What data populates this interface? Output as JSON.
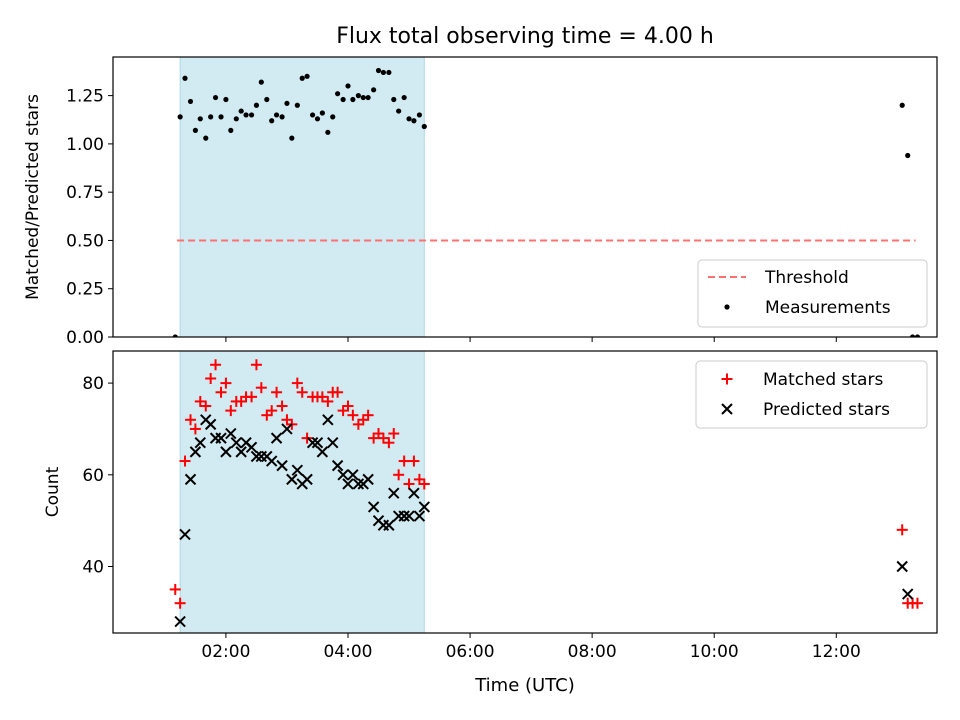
{
  "figure": {
    "title": "Flux total observing time = 4.00 h",
    "xlabel": "Time (UTC)",
    "xticks": [
      {
        "h": 2,
        "label": "02:00"
      },
      {
        "h": 4,
        "label": "04:00"
      },
      {
        "h": 6,
        "label": "06:00"
      },
      {
        "h": 8,
        "label": "08:00"
      },
      {
        "h": 10,
        "label": "10:00"
      },
      {
        "h": 12,
        "label": "12:00"
      }
    ],
    "xlim": [
      0.15,
      13.65
    ],
    "shaded_span": [
      1.25,
      5.25
    ],
    "shade_color": "#add8e6",
    "colors": {
      "threshold": "#ff7070",
      "measurements": "#000000",
      "matched": "#ff0000",
      "predicted": "#000000"
    }
  },
  "chart_data": [
    {
      "type": "scatter",
      "ylabel": "Matched/Predicted stars",
      "ylim": [
        0.0,
        1.45
      ],
      "yticks": [
        0.0,
        0.25,
        0.5,
        0.75,
        1.0,
        1.25
      ],
      "ytick_labels": [
        "0.00",
        "0.25",
        "0.50",
        "0.75",
        "1.00",
        "1.25"
      ],
      "legend_position": "lower-right",
      "threshold": {
        "name": "Threshold",
        "value": 0.5,
        "x": [
          1.2,
          13.3
        ]
      },
      "series": [
        {
          "name": "Measurements",
          "x": [
            1.17,
            1.25,
            1.33,
            1.42,
            1.5,
            1.58,
            1.67,
            1.75,
            1.83,
            1.92,
            2.0,
            2.08,
            2.17,
            2.25,
            2.33,
            2.42,
            2.5,
            2.58,
            2.67,
            2.75,
            2.83,
            2.92,
            3.0,
            3.08,
            3.17,
            3.25,
            3.33,
            3.42,
            3.5,
            3.58,
            3.67,
            3.75,
            3.83,
            3.92,
            4.0,
            4.08,
            4.17,
            4.25,
            4.33,
            4.42,
            4.5,
            4.58,
            4.67,
            4.75,
            4.83,
            4.92,
            5.0,
            5.08,
            5.17,
            5.25,
            13.08,
            13.17,
            13.25,
            13.33
          ],
          "y": [
            0.0,
            1.14,
            1.34,
            1.22,
            1.07,
            1.13,
            1.03,
            1.14,
            1.24,
            1.14,
            1.23,
            1.07,
            1.13,
            1.17,
            1.15,
            1.15,
            1.2,
            1.32,
            1.23,
            1.12,
            1.15,
            1.14,
            1.21,
            1.03,
            1.2,
            1.34,
            1.35,
            1.15,
            1.13,
            1.16,
            1.06,
            1.14,
            1.26,
            1.23,
            1.3,
            1.23,
            1.25,
            1.24,
            1.24,
            1.28,
            1.38,
            1.37,
            1.37,
            1.23,
            1.17,
            1.24,
            1.13,
            1.12,
            1.15,
            1.09,
            1.2,
            0.94,
            0.0,
            0.0
          ]
        }
      ]
    },
    {
      "type": "scatter",
      "ylabel": "Count",
      "ylim": [
        25.5,
        87.0
      ],
      "yticks": [
        40,
        60,
        80
      ],
      "ytick_labels": [
        "40",
        "60",
        "80"
      ],
      "legend_position": "upper-right",
      "series": [
        {
          "name": "Matched stars",
          "marker": "plus",
          "x": [
            1.17,
            1.25,
            1.33,
            1.42,
            1.5,
            1.58,
            1.67,
            1.75,
            1.83,
            1.92,
            2.0,
            2.08,
            2.17,
            2.25,
            2.33,
            2.42,
            2.5,
            2.58,
            2.67,
            2.75,
            2.83,
            2.92,
            3.0,
            3.08,
            3.17,
            3.25,
            3.33,
            3.42,
            3.5,
            3.58,
            3.67,
            3.75,
            3.83,
            3.92,
            4.0,
            4.08,
            4.17,
            4.25,
            4.33,
            4.42,
            4.5,
            4.58,
            4.67,
            4.75,
            4.83,
            4.92,
            5.0,
            5.08,
            5.17,
            5.25,
            13.08,
            13.17,
            13.25,
            13.33
          ],
          "y": [
            35,
            32,
            63,
            72,
            70,
            76,
            75,
            81,
            84,
            78,
            80,
            74,
            76,
            76,
            77,
            77,
            84,
            79,
            73,
            74,
            78,
            75,
            72,
            71,
            80,
            78,
            68,
            77,
            77,
            77,
            76,
            78,
            78,
            74,
            75,
            73,
            71,
            72,
            73,
            68,
            69,
            68,
            67,
            69,
            60,
            63,
            58,
            63,
            59,
            58,
            48,
            32,
            32,
            32
          ]
        },
        {
          "name": "Predicted stars",
          "marker": "x",
          "x": [
            1.25,
            1.33,
            1.42,
            1.5,
            1.58,
            1.67,
            1.75,
            1.83,
            1.92,
            2.0,
            2.08,
            2.17,
            2.25,
            2.33,
            2.42,
            2.5,
            2.58,
            2.67,
            2.75,
            2.83,
            2.92,
            3.0,
            3.08,
            3.17,
            3.25,
            3.33,
            3.42,
            3.5,
            3.58,
            3.67,
            3.75,
            3.83,
            3.92,
            4.0,
            4.08,
            4.17,
            4.25,
            4.33,
            4.42,
            4.5,
            4.58,
            4.67,
            4.75,
            4.83,
            4.92,
            5.0,
            5.08,
            5.17,
            5.25,
            13.08,
            13.17
          ],
          "y": [
            28,
            47,
            59,
            65,
            67,
            72,
            71,
            68,
            68,
            65,
            69,
            67,
            65,
            67,
            66,
            64,
            64,
            64,
            63,
            68,
            62,
            70,
            59,
            61,
            58,
            59,
            67,
            67,
            65,
            72,
            67,
            62,
            60,
            58,
            60,
            58,
            58,
            59,
            53,
            50,
            49,
            49,
            56,
            51,
            51,
            51,
            56,
            51,
            53,
            40,
            34
          ]
        }
      ]
    }
  ]
}
